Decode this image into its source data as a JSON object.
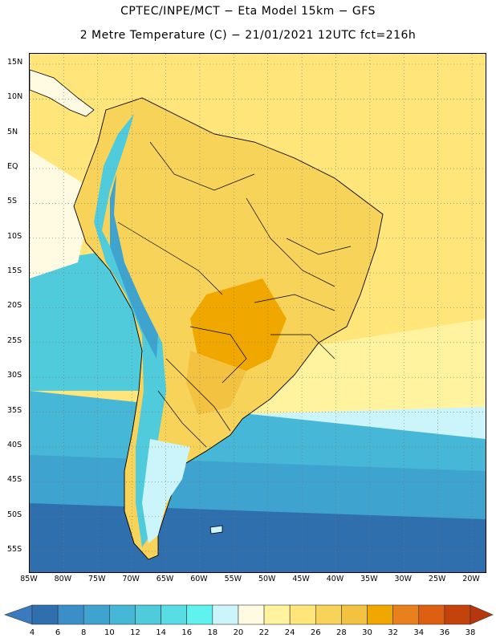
{
  "header": {
    "title_line1": "CPTEC/INPE/MCT −  Eta Model 15km − GFS",
    "title_line2": "2 Metre Temperature (C) − 21/01/2021 12UTC fct=216h"
  },
  "map": {
    "lat_labels": [
      "15N",
      "10N",
      "5N",
      "EQ",
      "5S",
      "10S",
      "15S",
      "20S",
      "25S",
      "30S",
      "35S",
      "40S",
      "45S",
      "50S",
      "55S"
    ],
    "lon_labels": [
      "85W",
      "80W",
      "75W",
      "70W",
      "65W",
      "60W",
      "55W",
      "50W",
      "45W",
      "40W",
      "35W",
      "30W",
      "25W",
      "20W"
    ],
    "lat_range": [
      16.5,
      -58.0
    ],
    "lon_range": [
      -85.0,
      -18.0
    ]
  },
  "colorbar": {
    "labels": [
      "4",
      "6",
      "8",
      "10",
      "12",
      "14",
      "16",
      "18",
      "20",
      "22",
      "24",
      "26",
      "28",
      "30",
      "32",
      "34",
      "36",
      "38"
    ],
    "colors": [
      "#3a7bbf",
      "#2f6fae",
      "#3b8fc8",
      "#3fa3cf",
      "#46b7d6",
      "#4fcbdc",
      "#57dde3",
      "#5ff2ee",
      "#ccf5fb",
      "#fffbe2",
      "#fff3a0",
      "#ffe57a",
      "#f7d35a",
      "#f3c240",
      "#f0a800",
      "#e8801d",
      "#dd5f12",
      "#c4420b",
      "#b8360d"
    ]
  },
  "temperature_field": {
    "ocean_equatorial": "#ffe57a",
    "land_tropical": "#f7d35a",
    "land_hot_core": "#f0a800",
    "south_atlantic_mid": "#fff3a0",
    "south_atlantic_cool": "#ccf5fb",
    "south_pacific_cool": "#46b7d6",
    "southern_ocean": "#2f6fae",
    "andes_high": "#4fcbdc"
  }
}
